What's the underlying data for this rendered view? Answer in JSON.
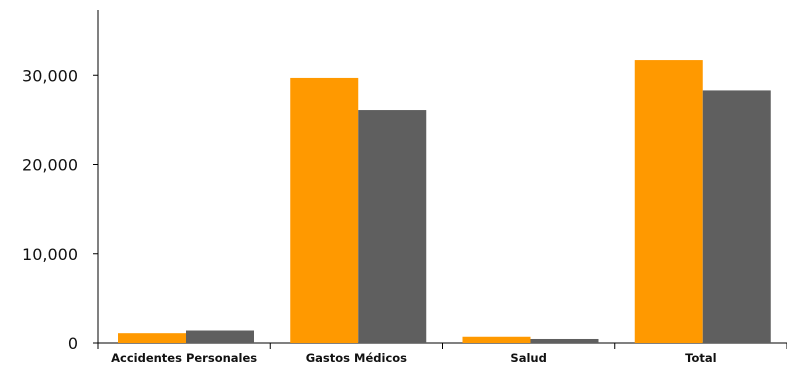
{
  "chart_data": {
    "type": "bar",
    "categories": [
      "Accidentes Personales",
      "Gastos Médicos",
      "Salud",
      "Total"
    ],
    "series": [
      {
        "values": [
          1100,
          29700,
          700,
          31700
        ]
      },
      {
        "values": [
          1400,
          26100,
          450,
          28300
        ]
      }
    ],
    "series_colors": [
      "#ff9900",
      "#5f5f5f"
    ],
    "y_ticks": [
      0,
      10000,
      20000,
      30000
    ],
    "y_tick_labels": [
      "0",
      "10,000",
      "20,000",
      "30,000"
    ],
    "ylim": [
      0,
      37000
    ],
    "title": "",
    "xlabel": "",
    "ylabel": "",
    "grid": false,
    "legend": "none"
  }
}
